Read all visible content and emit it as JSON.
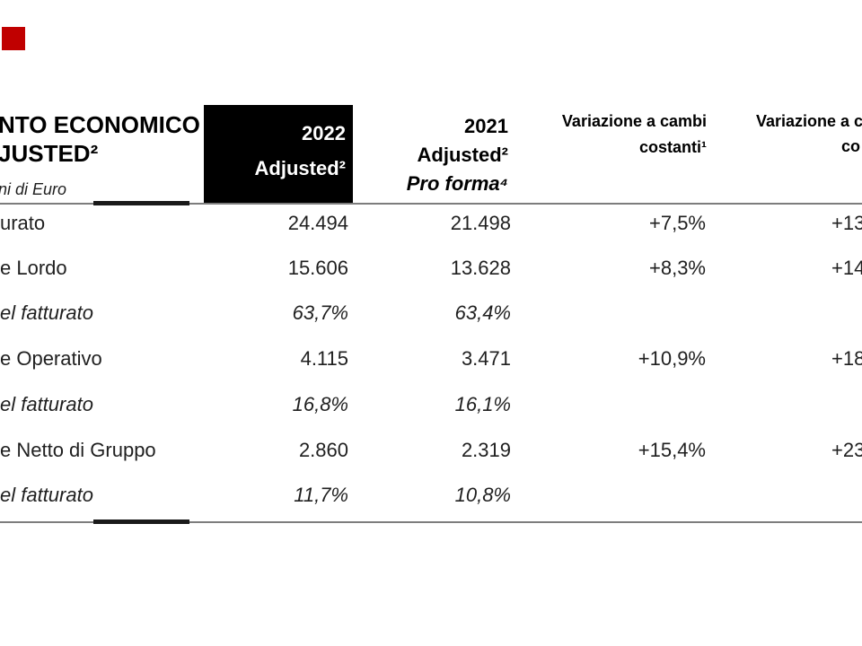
{
  "colors": {
    "background": "#ffffff",
    "header_box_bg": "#000000",
    "header_box_text": "#ffffff",
    "red_mark": "#c00000",
    "rule_gray": "#7d7d7d",
    "rule_black": "#1a1a1a"
  },
  "title": {
    "line1": "NTO ECONOMICO",
    "line2": "JUSTED²",
    "subtitle": "ni di Euro"
  },
  "columns": {
    "col2022": {
      "line1": "2022",
      "line2": "Adjusted²"
    },
    "col2021": {
      "line1": "2021",
      "line2": "Adjusted²",
      "line3": "Pro forma⁴"
    },
    "var_costanti": {
      "line1": "Variazione a cambi",
      "line2": "costanti¹"
    },
    "var_correnti": {
      "line1": "Variazione a c",
      "line2": "co"
    }
  },
  "rows": [
    {
      "label": "urato",
      "v2022": "24.494",
      "v2021": "21.498",
      "var_costanti": "+7,5%",
      "var_correnti": "+13"
    },
    {
      "label": "e Lordo",
      "v2022": "15.606",
      "v2021": "13.628",
      "var_costanti": "+8,3%",
      "var_correnti": "+14"
    },
    {
      "label": "el fatturato",
      "v2022": "63,7%",
      "v2021": "63,4%"
    },
    {
      "label": "e Operativo",
      "v2022": "4.115",
      "v2021": "3.471",
      "var_costanti": "+10,9%",
      "var_correnti": "+18"
    },
    {
      "label": "el fatturato",
      "v2022": "16,8%",
      "v2021": "16,1%"
    },
    {
      "label": "e Netto di Gruppo",
      "v2022": "2.860",
      "v2021": "2.319",
      "var_costanti": "+15,4%",
      "var_correnti": "+23"
    },
    {
      "label": "el fatturato",
      "v2022": "11,7%",
      "v2021": "10,8%"
    }
  ]
}
